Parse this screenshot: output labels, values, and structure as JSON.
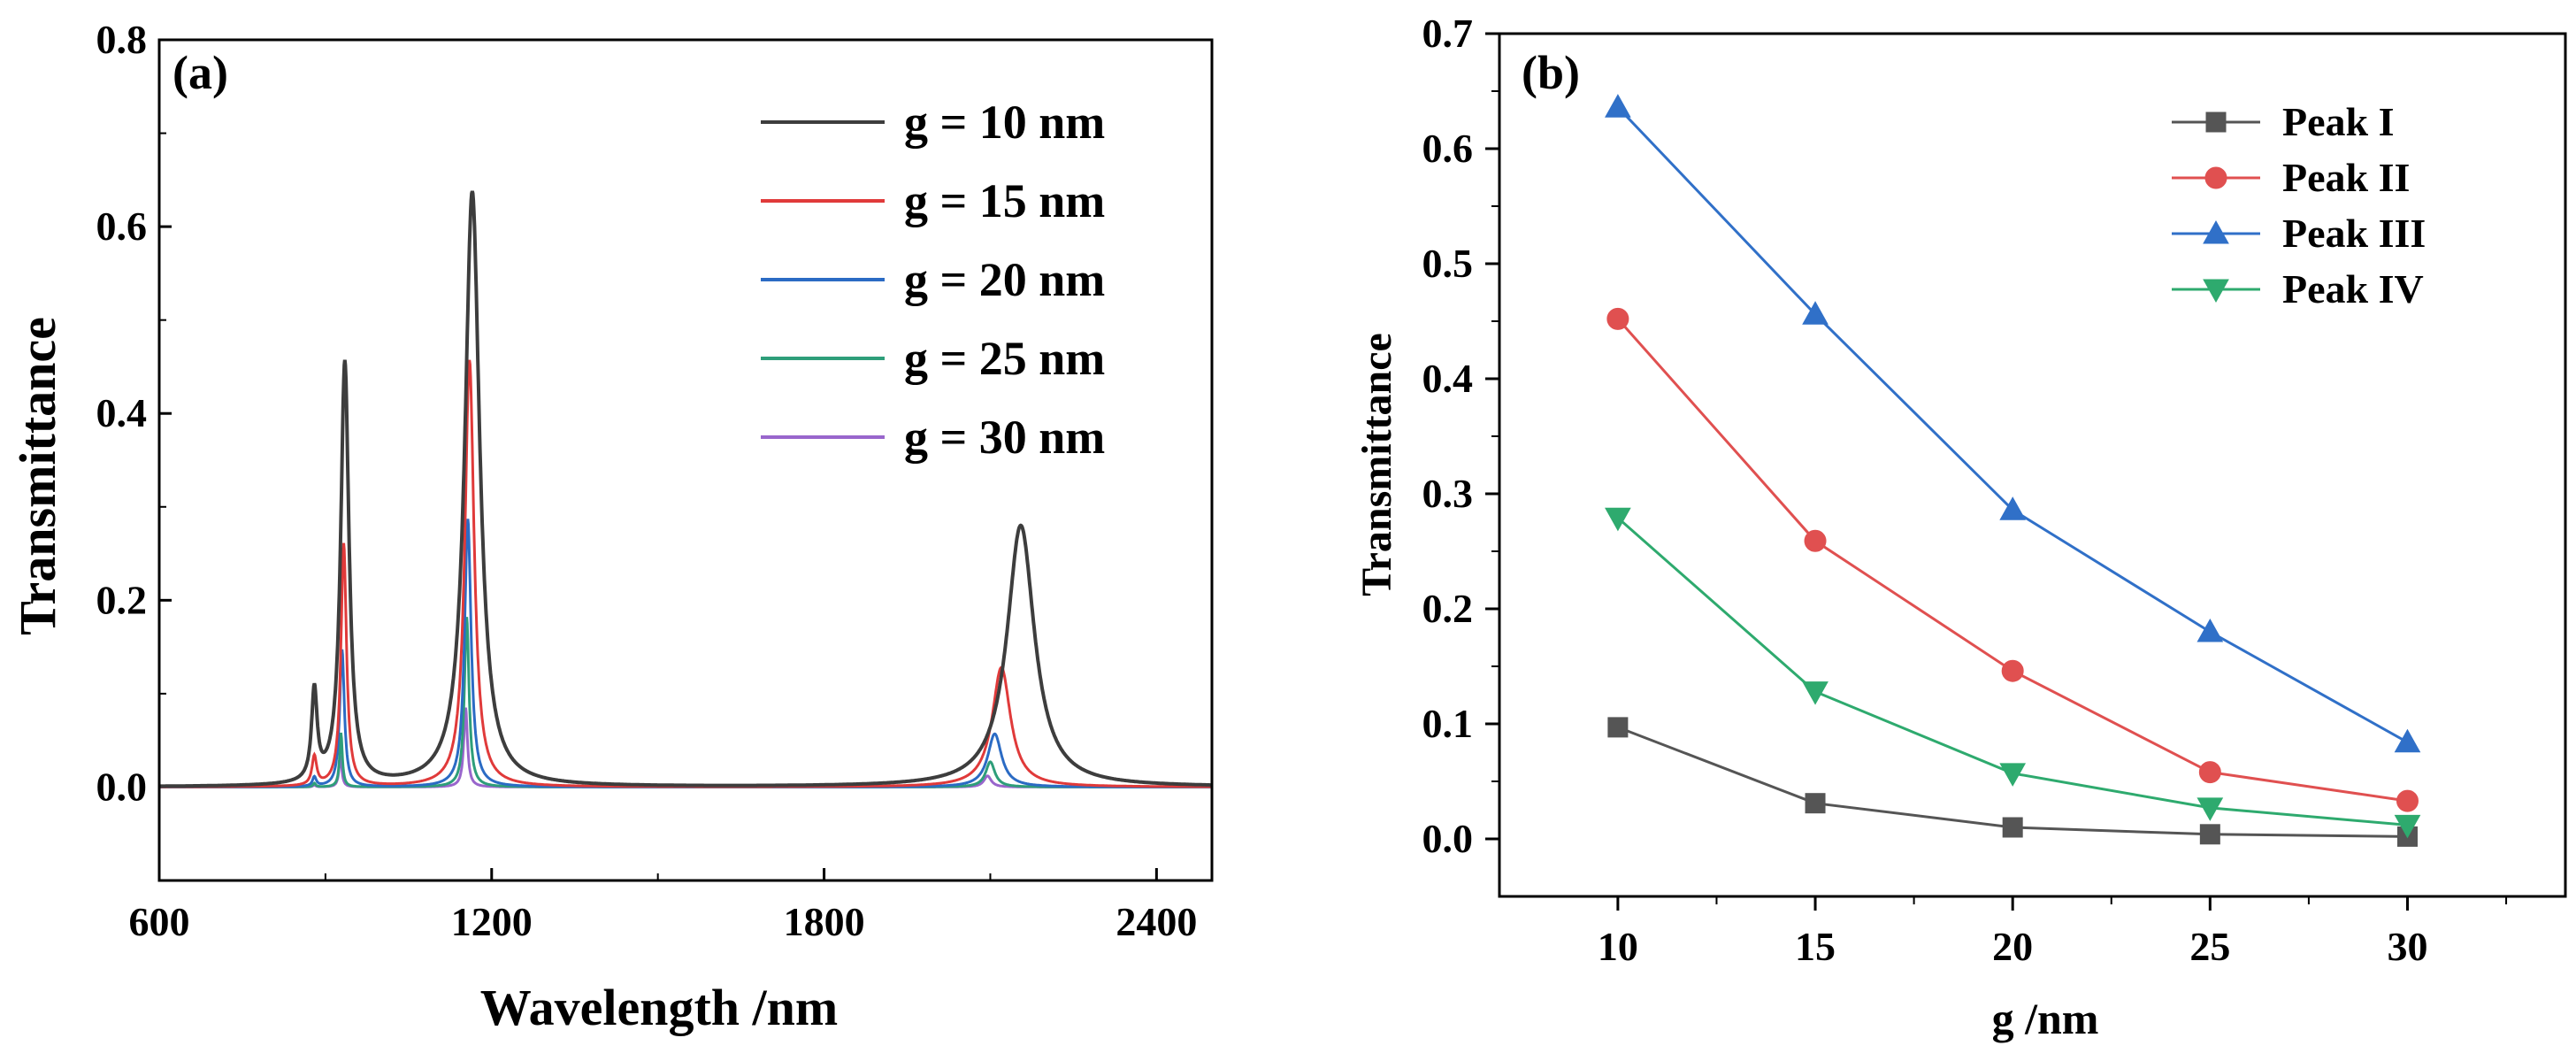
{
  "chart_data": [
    {
      "panel": "(a)",
      "type": "line",
      "xlabel": "Wavelength /nm",
      "ylabel": "Transmittance",
      "xlim": [
        600,
        2500
      ],
      "ylim": [
        -0.1,
        0.8
      ],
      "xticks": [
        "600",
        "1200",
        "1800",
        "2400"
      ],
      "yticks": [
        "0.0",
        "0.2",
        "0.4",
        "0.6",
        "0.8"
      ],
      "legend_position": "top-right",
      "series": [
        {
          "name": "g = 10 nm",
          "color": "#3d3d3d",
          "peaks": [
            [
              880,
              0.097
            ],
            [
              935,
              0.453
            ],
            [
              1165,
              0.637
            ],
            [
              2155,
              0.28
            ]
          ],
          "widths": [
            6,
            9,
            16,
            30
          ]
        },
        {
          "name": "g = 15 nm",
          "color": "#e03a3a",
          "peaks": [
            [
              880,
              0.031
            ],
            [
              933,
              0.26
            ],
            [
              1160,
              0.457
            ],
            [
              2120,
              0.128
            ]
          ],
          "widths": [
            5,
            6,
            10,
            20
          ]
        },
        {
          "name": "g = 20 nm",
          "color": "#2b6bc4",
          "peaks": [
            [
              880,
              0.01
            ],
            [
              930,
              0.147
            ],
            [
              1157,
              0.287
            ],
            [
              2108,
              0.057
            ]
          ],
          "widths": [
            4,
            5,
            7,
            15
          ]
        },
        {
          "name": "g = 25 nm",
          "color": "#2e9e7a",
          "peaks": [
            [
              880,
              0.004
            ],
            [
              928,
              0.058
            ],
            [
              1155,
              0.182
            ],
            [
              2100,
              0.027
            ]
          ],
          "widths": [
            3,
            3,
            5,
            10
          ]
        },
        {
          "name": "g = 30 nm",
          "color": "#9966cc",
          "peaks": [
            [
              880,
              0.002
            ],
            [
              927,
              0.034
            ],
            [
              1153,
              0.085
            ],
            [
              2095,
              0.012
            ]
          ],
          "widths": [
            3,
            3,
            4,
            8
          ]
        }
      ]
    },
    {
      "panel": "(b)",
      "type": "line",
      "xlabel": "g /nm",
      "ylabel": "Transmittance",
      "x": [
        10,
        15,
        20,
        25,
        30
      ],
      "xlim": [
        7,
        34
      ],
      "ylim": [
        -0.05,
        0.7
      ],
      "xticks": [
        "10",
        "15",
        "20",
        "25",
        "30"
      ],
      "yticks": [
        "0.0",
        "0.1",
        "0.2",
        "0.3",
        "0.4",
        "0.5",
        "0.6",
        "0.7"
      ],
      "legend_position": "top-right",
      "series": [
        {
          "name": "Peak I",
          "marker": "square",
          "color": "#555555",
          "values": [
            0.097,
            0.031,
            0.01,
            0.004,
            0.002
          ]
        },
        {
          "name": "Peak II",
          "marker": "circle",
          "color": "#e05050",
          "values": [
            0.452,
            0.259,
            0.146,
            0.058,
            0.033
          ]
        },
        {
          "name": "Peak III",
          "marker": "triangle-up",
          "color": "#3070c8",
          "values": [
            0.636,
            0.456,
            0.286,
            0.18,
            0.084
          ]
        },
        {
          "name": "Peak IV",
          "marker": "triangle-down",
          "color": "#2eaa6e",
          "values": [
            0.279,
            0.128,
            0.057,
            0.027,
            0.012
          ]
        }
      ]
    }
  ]
}
